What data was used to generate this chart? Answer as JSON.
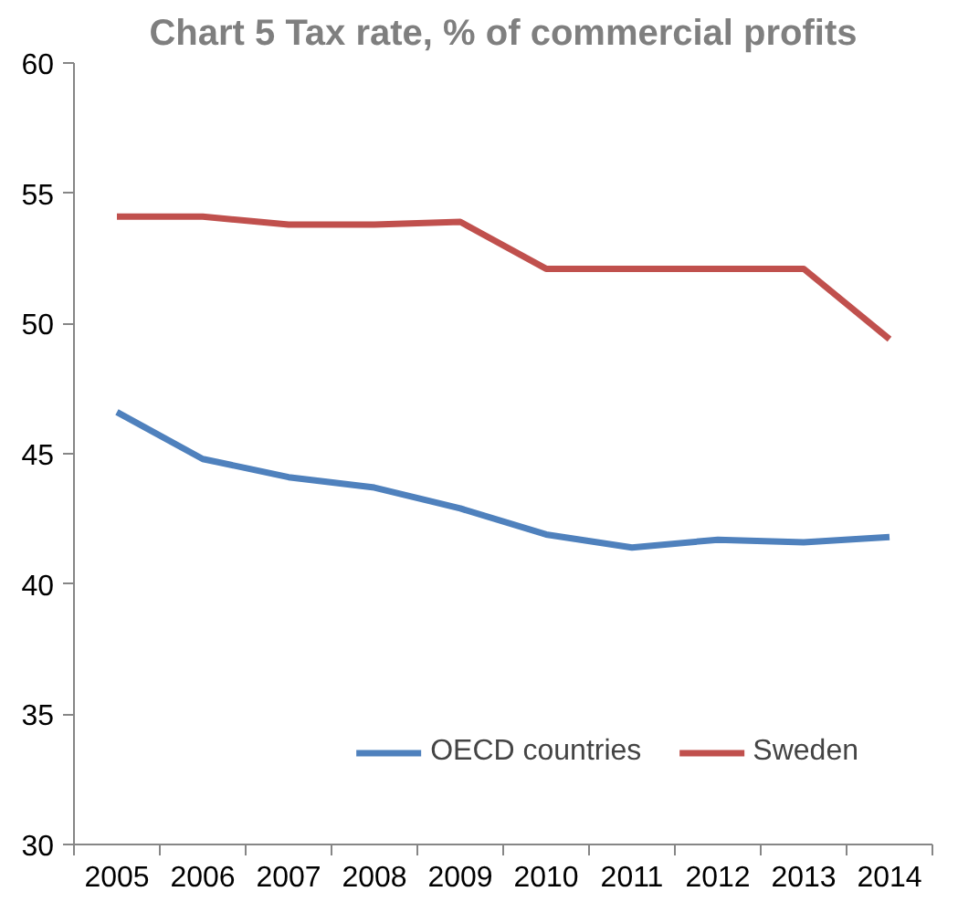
{
  "chart_data": {
    "type": "line",
    "title": "Chart 5 Tax rate, % of commercial profits",
    "categories": [
      "2005",
      "2006",
      "2007",
      "2008",
      "2009",
      "2010",
      "2011",
      "2012",
      "2013",
      "2014"
    ],
    "series": [
      {
        "name": "OECD countries",
        "color": "#4f81bd",
        "values": [
          46.6,
          44.8,
          44.1,
          43.7,
          42.9,
          41.9,
          41.4,
          41.7,
          41.6,
          41.8
        ]
      },
      {
        "name": "Sweden",
        "color": "#c0504d",
        "values": [
          54.1,
          54.1,
          53.8,
          53.8,
          53.9,
          52.1,
          52.1,
          52.1,
          52.1,
          49.4
        ]
      }
    ],
    "ylim": [
      30,
      60
    ],
    "yticks": [
      30,
      35,
      40,
      45,
      50,
      55,
      60
    ],
    "grid": false,
    "legend": "bottom right",
    "marker": "none",
    "line_style": "solid"
  }
}
